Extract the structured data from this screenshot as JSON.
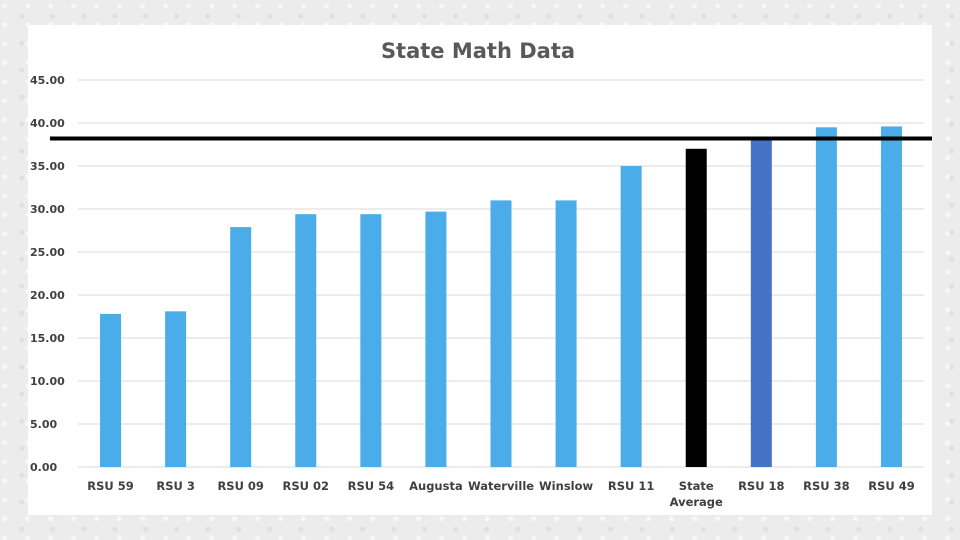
{
  "chart_data": {
    "type": "bar",
    "title": "State Math Data",
    "xlabel": "",
    "ylabel": "",
    "ylim": [
      0,
      45
    ],
    "ytick_step": 5,
    "ytick_labels": [
      "0.00",
      "5.00",
      "10.00",
      "15.00",
      "20.00",
      "25.00",
      "30.00",
      "35.00",
      "40.00",
      "45.00"
    ],
    "grid": true,
    "legend": "none",
    "categories": [
      "RSU 59",
      "RSU 3",
      "RSU 09",
      "RSU 02",
      "RSU 54",
      "Augusta",
      "Waterville",
      "Winslow",
      "RSU 11",
      "State Average",
      "RSU 18",
      "RSU 38",
      "RSU 49"
    ],
    "category_lines": [
      [
        "RSU 59"
      ],
      [
        "RSU 3"
      ],
      [
        "RSU 09"
      ],
      [
        "RSU 02"
      ],
      [
        "RSU 54"
      ],
      [
        "Augusta"
      ],
      [
        "Waterville"
      ],
      [
        "Winslow"
      ],
      [
        "RSU 11"
      ],
      [
        "State",
        "Average"
      ],
      [
        "RSU 18"
      ],
      [
        "RSU 38"
      ],
      [
        "RSU 49"
      ]
    ],
    "values": [
      17.8,
      18.1,
      27.9,
      29.4,
      29.4,
      29.7,
      31.0,
      31.0,
      35.0,
      37.0,
      38.1,
      39.5,
      39.6
    ],
    "colors": [
      "#4bacea",
      "#4bacea",
      "#4bacea",
      "#4bacea",
      "#4bacea",
      "#4bacea",
      "#4bacea",
      "#4bacea",
      "#4bacea",
      "#000000",
      "#4472c4",
      "#4bacea",
      "#4bacea"
    ],
    "reference_line": {
      "value": 38.2,
      "color": "#000000"
    }
  }
}
